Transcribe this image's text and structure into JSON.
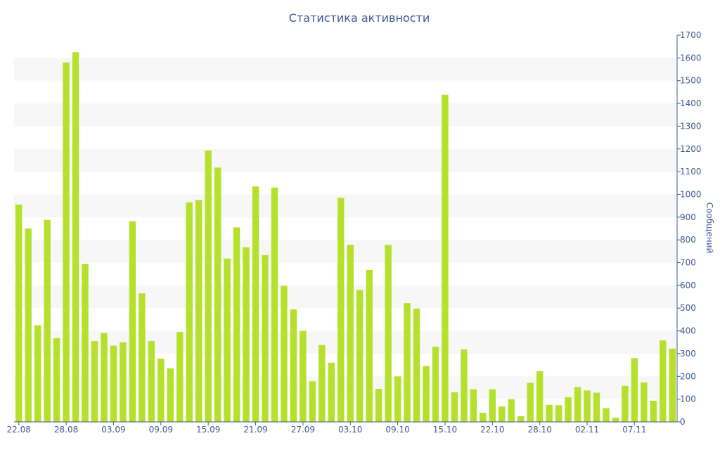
{
  "chart_data": {
    "type": "bar",
    "title": "Статистика активности",
    "xlabel": "",
    "ylabel": "Сообщений",
    "ylim": [
      0,
      1700
    ],
    "y_ticks": [
      0,
      100,
      200,
      300,
      400,
      500,
      600,
      700,
      800,
      900,
      1000,
      1100,
      1200,
      1300,
      1400,
      1500,
      1600,
      1700
    ],
    "y_axis_position": "right",
    "grid": "alternating horizontal bands",
    "legend": "none",
    "bar_color": "#b5e02c",
    "band_color": "#f7f7f7",
    "axis_color": "#3e5a8c",
    "x_tick_labels": [
      {
        "index": 0,
        "label": "22.08"
      },
      {
        "index": 5,
        "label": "28.08"
      },
      {
        "index": 10,
        "label": "03.09"
      },
      {
        "index": 15,
        "label": "09.09"
      },
      {
        "index": 20,
        "label": "15.09"
      },
      {
        "index": 25,
        "label": "21.09"
      },
      {
        "index": 30,
        "label": "27.09"
      },
      {
        "index": 35,
        "label": "03.10"
      },
      {
        "index": 40,
        "label": "09.10"
      },
      {
        "index": 45,
        "label": "15.10"
      },
      {
        "index": 50,
        "label": "22.10"
      },
      {
        "index": 55,
        "label": "28.10"
      },
      {
        "index": 60,
        "label": "02.11"
      },
      {
        "index": 65,
        "label": "07.11"
      }
    ],
    "values": [
      955,
      850,
      425,
      888,
      368,
      1580,
      1625,
      695,
      355,
      390,
      335,
      350,
      882,
      565,
      355,
      278,
      235,
      395,
      965,
      975,
      1193,
      1118,
      718,
      855,
      768,
      1035,
      733,
      1030,
      598,
      495,
      400,
      178,
      338,
      260,
      985,
      778,
      580,
      668,
      145,
      778,
      200,
      522,
      498,
      245,
      330,
      1438,
      130,
      318,
      143,
      40,
      143,
      68,
      100,
      25,
      172,
      223,
      75,
      73,
      108,
      153,
      138,
      128,
      60,
      18,
      158,
      280,
      173,
      93,
      358,
      322
    ]
  }
}
